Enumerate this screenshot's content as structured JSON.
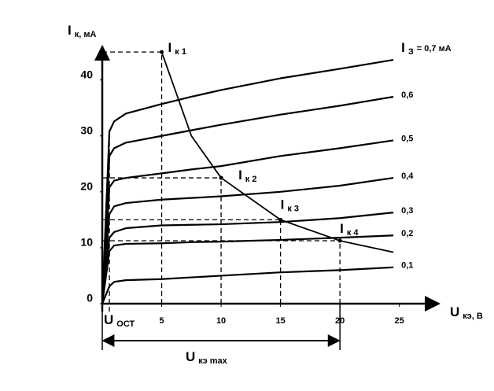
{
  "chart_data": {
    "type": "line",
    "y_label": {
      "symbol": "I",
      "subscript": "к, мА"
    },
    "x_label": {
      "symbol": "U",
      "subscript": "кэ, В"
    },
    "x": [
      0,
      0.6,
      1,
      2,
      5,
      7.5,
      10,
      15,
      20,
      24.5
    ],
    "xlim": [
      0,
      28
    ],
    "xticks": [
      5,
      10,
      15,
      20,
      25
    ],
    "ylim": [
      0,
      46
    ],
    "yticks": [
      0,
      10,
      20,
      30,
      40
    ],
    "color": "#000000",
    "series": [
      {
        "prefix": {
          "symbol": "I",
          "subscript": "З"
        },
        "name": "= 0,7 мА",
        "values": [
          0,
          30.8,
          32.6,
          34,
          35.7,
          37,
          38.2,
          40.3,
          42,
          43.6
        ]
      },
      {
        "name": "0,6",
        "values": [
          0,
          26.4,
          27.8,
          28.8,
          30,
          31,
          32,
          33.8,
          35.4,
          37
        ]
      },
      {
        "name": "0,5",
        "values": [
          0,
          20.8,
          22,
          22.5,
          23.3,
          24,
          24.6,
          26.4,
          27.8,
          29.2
        ]
      },
      {
        "name": "0,4",
        "values": [
          0,
          16,
          17.4,
          18,
          18.6,
          18.9,
          19.2,
          20,
          21.1,
          22.5
        ]
      },
      {
        "name": "0,3",
        "values": [
          0,
          11.8,
          12.8,
          13.5,
          14,
          14.1,
          14.2,
          14.6,
          15.3,
          16.3
        ]
      },
      {
        "name": "0,2",
        "values": [
          0,
          9.4,
          10.4,
          10.7,
          10.8,
          11,
          11.1,
          11.4,
          11.8,
          12.2
        ]
      },
      {
        "name": "0,1",
        "values": [
          0,
          3.1,
          3.9,
          4.2,
          4.4,
          4.7,
          5,
          5.6,
          6,
          6.5
        ]
      }
    ],
    "max_power_curve": {
      "values": [
        null,
        null,
        null,
        null,
        45,
        30,
        22.5,
        15,
        11.25,
        9.2
      ]
    },
    "points": [
      {
        "symbol": "I",
        "subscript": "к 1",
        "x": 5,
        "y": 45
      },
      {
        "symbol": "I",
        "subscript": "к 2",
        "x": 10,
        "y": 22.5
      },
      {
        "symbol": "I",
        "subscript": "к 3",
        "x": 15,
        "y": 15
      },
      {
        "symbol": "I",
        "subscript": "к 4",
        "x": 20,
        "y": 11.25
      }
    ],
    "u_ost": {
      "symbol": "U",
      "subscript": "ОСТ",
      "x": 0.6,
      "y": 30.8
    },
    "u_max": {
      "symbol": "U",
      "subscript": "кэ max",
      "from": 0,
      "to": 20
    }
  }
}
